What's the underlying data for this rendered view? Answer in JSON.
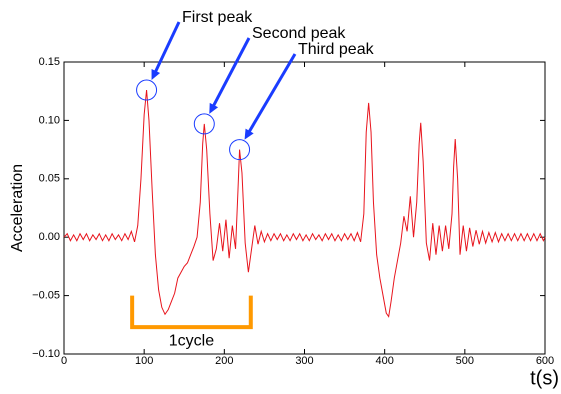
{
  "chart_data": {
    "type": "line",
    "xlabel": "t(s)",
    "ylabel": "Acceleration",
    "xlim": [
      0,
      600
    ],
    "ylim": [
      -0.1,
      0.15
    ],
    "xticks": [
      0,
      100,
      200,
      300,
      400,
      500,
      600
    ],
    "yticks": [
      {
        "value": -0.1,
        "label": "−0.10"
      },
      {
        "value": -0.05,
        "label": "−0.05"
      },
      {
        "value": 0.0,
        "label": "0.00"
      },
      {
        "value": 0.05,
        "label": "0.05"
      },
      {
        "value": 0.1,
        "label": "0.10"
      },
      {
        "value": 0.15,
        "label": "0.15"
      }
    ],
    "grid": false,
    "x": [
      0,
      4,
      8,
      12,
      16,
      20,
      24,
      28,
      32,
      36,
      40,
      44,
      48,
      52,
      56,
      60,
      64,
      68,
      72,
      76,
      80,
      84,
      88,
      92,
      96,
      100,
      103,
      106,
      110,
      114,
      118,
      122,
      126,
      130,
      134,
      138,
      142,
      146,
      150,
      154,
      158,
      162,
      166,
      170,
      173,
      175,
      178,
      182,
      186,
      190,
      194,
      198,
      202,
      206,
      210,
      214,
      217,
      219,
      222,
      226,
      230,
      234,
      238,
      242,
      246,
      250,
      254,
      258,
      262,
      266,
      270,
      274,
      278,
      282,
      286,
      290,
      294,
      298,
      302,
      306,
      310,
      314,
      318,
      322,
      326,
      330,
      334,
      338,
      342,
      346,
      350,
      354,
      358,
      362,
      366,
      370,
      374,
      377,
      380,
      383,
      386,
      390,
      394,
      398,
      402,
      405,
      408,
      412,
      416,
      420,
      424,
      428,
      432,
      436,
      440,
      443,
      445,
      448,
      452,
      456,
      460,
      464,
      468,
      472,
      476,
      480,
      484,
      486,
      488,
      491,
      494,
      498,
      502,
      506,
      510,
      514,
      518,
      522,
      526,
      530,
      534,
      538,
      542,
      546,
      550,
      554,
      558,
      562,
      566,
      570,
      574,
      578,
      582,
      586,
      590,
      594,
      598,
      600
    ],
    "series": [
      {
        "color": "#e8141c",
        "values": [
          0.0,
          0.003,
          -0.003,
          0.002,
          -0.003,
          0.003,
          -0.002,
          0.003,
          -0.003,
          0.002,
          -0.002,
          0.003,
          -0.003,
          0.002,
          -0.003,
          0.003,
          -0.002,
          0.002,
          -0.003,
          0.003,
          -0.002,
          0.005,
          -0.004,
          0.01,
          0.05,
          0.105,
          0.126,
          0.1,
          0.04,
          -0.015,
          -0.045,
          -0.06,
          -0.066,
          -0.062,
          -0.055,
          -0.048,
          -0.035,
          -0.03,
          -0.025,
          -0.022,
          -0.015,
          -0.008,
          0.0,
          0.03,
          0.08,
          0.097,
          0.075,
          0.02,
          -0.02,
          -0.01,
          0.012,
          -0.012,
          0.015,
          -0.018,
          0.01,
          -0.01,
          0.04,
          0.075,
          0.055,
          -0.005,
          -0.03,
          -0.01,
          0.01,
          -0.006,
          0.005,
          -0.004,
          0.003,
          -0.003,
          0.003,
          -0.002,
          0.003,
          -0.003,
          0.002,
          -0.003,
          0.003,
          -0.002,
          0.003,
          -0.003,
          0.002,
          -0.003,
          0.003,
          -0.002,
          0.002,
          -0.003,
          0.003,
          -0.002,
          0.003,
          -0.003,
          0.002,
          -0.003,
          0.003,
          -0.002,
          0.003,
          -0.003,
          0.004,
          -0.004,
          0.02,
          0.09,
          0.115,
          0.09,
          0.03,
          -0.015,
          -0.035,
          -0.05,
          -0.065,
          -0.068,
          -0.055,
          -0.035,
          -0.02,
          -0.005,
          0.018,
          0.005,
          0.035,
          0.0,
          0.03,
          0.08,
          0.098,
          0.065,
          -0.005,
          -0.02,
          0.012,
          -0.015,
          0.01,
          -0.012,
          0.01,
          -0.01,
          0.02,
          0.06,
          0.084,
          0.05,
          -0.015,
          0.01,
          -0.012,
          0.008,
          -0.008,
          0.006,
          -0.006,
          0.005,
          -0.005,
          0.004,
          -0.004,
          0.004,
          -0.004,
          0.003,
          -0.003,
          0.003,
          -0.003,
          0.003,
          -0.003,
          0.003,
          -0.003,
          0.003,
          -0.003,
          0.003,
          -0.003,
          0.003,
          -0.003,
          0.0
        ]
      }
    ],
    "annotations": [
      {
        "text": "First peak",
        "x": 103,
        "y": 0.126
      },
      {
        "text": "Second peak",
        "x": 175,
        "y": 0.097
      },
      {
        "text": "Third peak",
        "x": 219,
        "y": 0.075
      }
    ],
    "bracket": {
      "label": "1cycle",
      "start": 85,
      "end": 233,
      "y": -0.077,
      "top": -0.05
    }
  }
}
